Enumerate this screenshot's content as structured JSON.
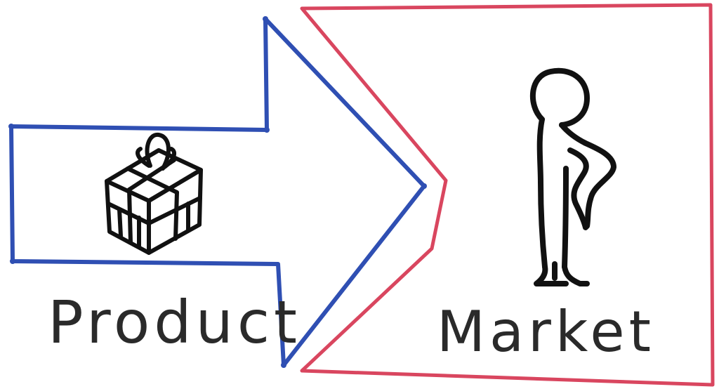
{
  "diagram": {
    "labels": {
      "product": "Product",
      "market": "Market"
    },
    "icons": {
      "product": "gift-box-icon",
      "market": "person-icon"
    },
    "colors": {
      "product_arrow": "#2f4fb3",
      "market_frame": "#d9465f",
      "ink": "#111111",
      "text": "#2a2a2a",
      "background": "#ffffff"
    }
  }
}
